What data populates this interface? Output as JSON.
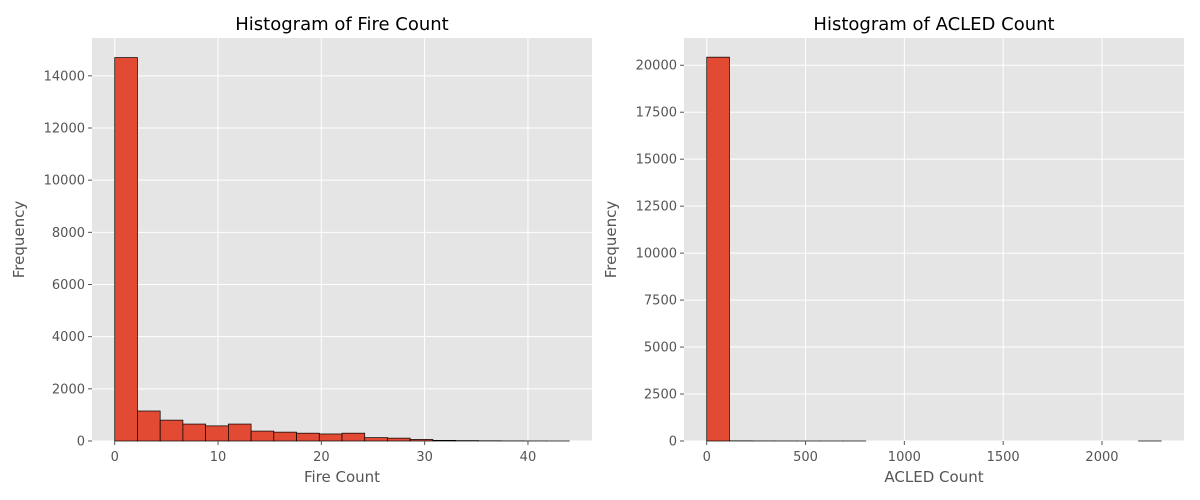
{
  "colors": {
    "background": "#ffffff",
    "plot_area": "#e5e5e5",
    "grid": "#ffffff",
    "bar_fill": "#e24a33",
    "bar_edge": "#000000",
    "text": "#555555"
  },
  "chart_data": [
    {
      "type": "bar",
      "title": "Histogram of Fire Count",
      "xlabel": "Fire Count",
      "ylabel": "Frequency",
      "xlim": [
        -2.2,
        46.2
      ],
      "ylim": [
        0,
        15450
      ],
      "xticks": [
        0,
        10,
        20,
        30,
        40
      ],
      "xtick_labels": [
        "0",
        "10",
        "20",
        "30",
        "40"
      ],
      "yticks": [
        0,
        2000,
        4000,
        6000,
        8000,
        10000,
        12000,
        14000
      ],
      "ytick_labels": [
        "0",
        "2000",
        "4000",
        "6000",
        "8000",
        "10000",
        "12000",
        "14000"
      ],
      "grid": true,
      "bin_edges": [
        0,
        2.2,
        4.4,
        6.6,
        8.8,
        11.0,
        13.2,
        15.4,
        17.6,
        19.8,
        22.0,
        24.2,
        26.4,
        28.6,
        30.8,
        33.0,
        35.2,
        37.4,
        39.6,
        41.8,
        44.0
      ],
      "values": [
        14700,
        1150,
        800,
        650,
        580,
        650,
        380,
        340,
        300,
        270,
        300,
        130,
        110,
        60,
        25,
        15,
        8,
        4,
        2,
        1
      ]
    },
    {
      "type": "bar",
      "title": "Histogram of ACLED Count",
      "xlabel": "ACLED Count",
      "ylabel": "Frequency",
      "xlim": [
        -115,
        2415
      ],
      "ylim": [
        0,
        21450
      ],
      "xticks": [
        0,
        500,
        1000,
        1500,
        2000
      ],
      "xtick_labels": [
        "0",
        "500",
        "1000",
        "1500",
        "2000"
      ],
      "yticks": [
        0,
        2500,
        5000,
        7500,
        10000,
        12500,
        15000,
        17500,
        20000
      ],
      "ytick_labels": [
        "0",
        "2500",
        "5000",
        "7500",
        "10000",
        "12500",
        "15000",
        "17500",
        "20000"
      ],
      "grid": true,
      "bin_edges": [
        0,
        115,
        230,
        345,
        460,
        575,
        690,
        805,
        920,
        1035,
        1150,
        1265,
        1380,
        1495,
        1610,
        1725,
        1840,
        1955,
        2070,
        2185,
        2300
      ],
      "values": [
        20430,
        8,
        4,
        2,
        1,
        1,
        1,
        0,
        0,
        0,
        0,
        0,
        0,
        0,
        0,
        0,
        0,
        0,
        0,
        1
      ]
    }
  ]
}
